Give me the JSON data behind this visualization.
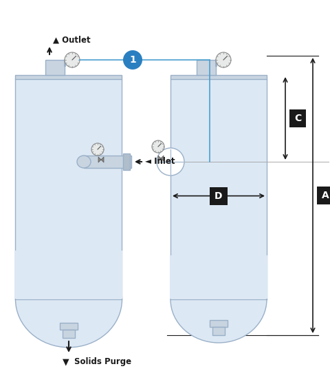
{
  "fig_width": 4.81,
  "fig_height": 5.55,
  "dpi": 100,
  "bg_color": "#ffffff",
  "vessel_fill": "#dce8f4",
  "vessel_edge": "#9ab0c8",
  "vessel_edge_width": 1.0,
  "label_bg": "#1a1a1a",
  "label_text": "#ffffff",
  "arrow_color": "#1a1a1a",
  "dim_line_color": "#1a1a1a",
  "blue_circle_color": "#2a7fc1",
  "connector_line_color": "#4aa0d0",
  "outlet_label": "Outlet",
  "inlet_label": "Inlet",
  "solids_purge_label": "Solids Purge",
  "dim_A": "A",
  "dim_C": "C",
  "dim_D": "D",
  "label_1": "1",
  "gauge_fill": "#e8eaea",
  "gauge_edge": "#888888",
  "nozzle_fill": "#c8d4e0",
  "nozzle_edge": "#9ab0c8"
}
